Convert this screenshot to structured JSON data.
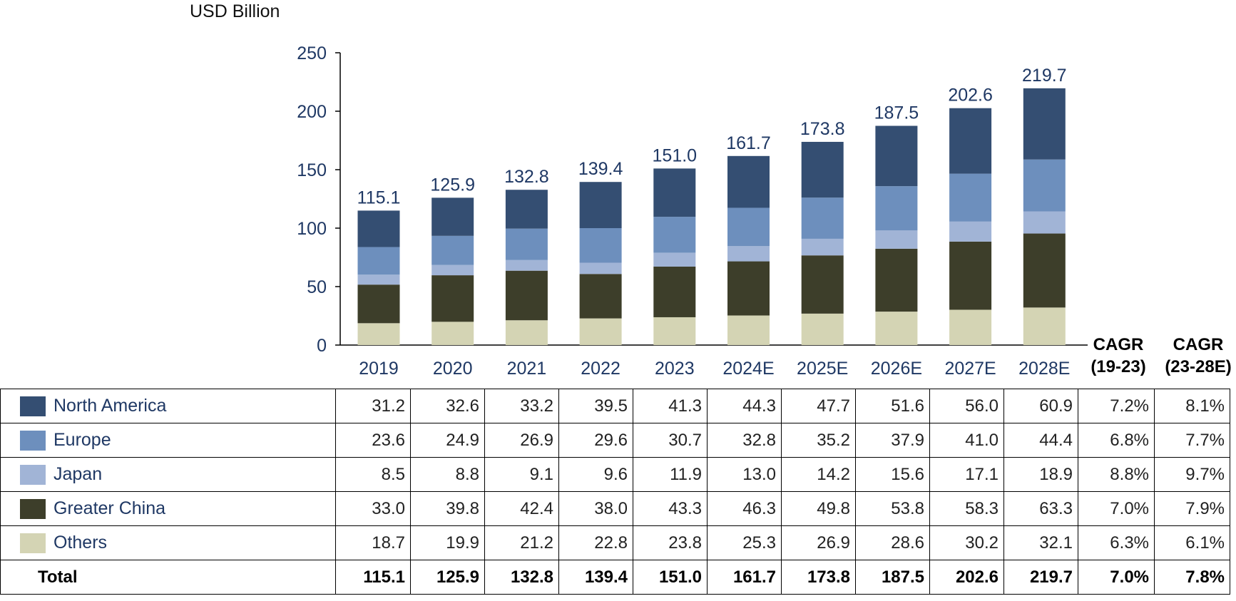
{
  "unit_label": "USD Billion",
  "cagr_headers": [
    {
      "line1": "CAGR",
      "line2": "(19-23)"
    },
    {
      "line1": "CAGR",
      "line2": "(23-28E)"
    }
  ],
  "colors": {
    "north_america": "#344e72",
    "europe": "#6d8fbd",
    "japan": "#a1b4d6",
    "greater_china": "#3d3e2a",
    "others": "#d4d4b4",
    "axis_text": "#1f3864"
  },
  "chart_data": {
    "type": "bar",
    "stacked": true,
    "categories": [
      "2019",
      "2020",
      "2021",
      "2022",
      "2023",
      "2024E",
      "2025E",
      "2026E",
      "2027E",
      "2028E"
    ],
    "ylabel": "USD Billion",
    "ylim": [
      0,
      250
    ],
    "yticks": [
      0,
      50,
      100,
      150,
      200,
      250
    ],
    "grid": false,
    "series": [
      {
        "name": "Others",
        "color": "#d4d4b4",
        "values": [
          18.7,
          19.9,
          21.2,
          22.8,
          23.8,
          25.3,
          26.9,
          28.6,
          30.2,
          32.1
        ]
      },
      {
        "name": "Greater China",
        "color": "#3d3e2a",
        "values": [
          33.0,
          39.8,
          42.4,
          38.0,
          43.3,
          46.3,
          49.8,
          53.8,
          58.3,
          63.3
        ]
      },
      {
        "name": "Japan",
        "color": "#a1b4d6",
        "values": [
          8.5,
          8.8,
          9.1,
          9.6,
          11.9,
          13.0,
          14.2,
          15.6,
          17.1,
          18.9
        ]
      },
      {
        "name": "Europe",
        "color": "#6d8fbd",
        "values": [
          23.6,
          24.9,
          26.9,
          29.6,
          30.7,
          32.8,
          35.2,
          37.9,
          41.0,
          44.4
        ]
      },
      {
        "name": "North America",
        "color": "#344e72",
        "values": [
          31.2,
          32.6,
          33.2,
          39.5,
          41.3,
          44.3,
          47.7,
          51.6,
          56.0,
          60.9
        ]
      }
    ],
    "totals": [
      "115.1",
      "125.9",
      "132.8",
      "139.4",
      "151.0",
      "161.7",
      "173.8",
      "187.5",
      "202.6",
      "219.7"
    ]
  },
  "table": {
    "rows": [
      {
        "name": "North America",
        "color": "#344e72",
        "values": [
          "31.2",
          "32.6",
          "33.2",
          "39.5",
          "41.3",
          "44.3",
          "47.7",
          "51.6",
          "56.0",
          "60.9"
        ],
        "cagr": [
          "7.2%",
          "8.1%"
        ]
      },
      {
        "name": "Europe",
        "color": "#6d8fbd",
        "values": [
          "23.6",
          "24.9",
          "26.9",
          "29.6",
          "30.7",
          "32.8",
          "35.2",
          "37.9",
          "41.0",
          "44.4"
        ],
        "cagr": [
          "6.8%",
          "7.7%"
        ]
      },
      {
        "name": "Japan",
        "color": "#a1b4d6",
        "values": [
          "8.5",
          "8.8",
          "9.1",
          "9.6",
          "11.9",
          "13.0",
          "14.2",
          "15.6",
          "17.1",
          "18.9"
        ],
        "cagr": [
          "8.8%",
          "9.7%"
        ]
      },
      {
        "name": "Greater China",
        "color": "#3d3e2a",
        "values": [
          "33.0",
          "39.8",
          "42.4",
          "38.0",
          "43.3",
          "46.3",
          "49.8",
          "53.8",
          "58.3",
          "63.3"
        ],
        "cagr": [
          "7.0%",
          "7.9%"
        ]
      },
      {
        "name": "Others",
        "color": "#d4d4b4",
        "values": [
          "18.7",
          "19.9",
          "21.2",
          "22.8",
          "23.8",
          "25.3",
          "26.9",
          "28.6",
          "30.2",
          "32.1"
        ],
        "cagr": [
          "6.3%",
          "6.1%"
        ]
      }
    ],
    "total": {
      "label": "Total",
      "values": [
        "115.1",
        "125.9",
        "132.8",
        "139.4",
        "151.0",
        "161.7",
        "173.8",
        "187.5",
        "202.6",
        "219.7"
      ],
      "cagr": [
        "7.0%",
        "7.8%"
      ]
    }
  }
}
